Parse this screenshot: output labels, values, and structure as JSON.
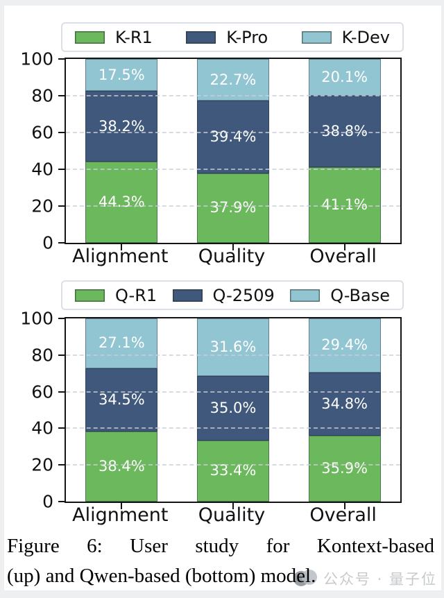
{
  "figure": {
    "caption": {
      "lines": [
        "Figure 6:  User study for Kontext-based",
        "(up) and Qwen-based (bottom) model."
      ],
      "full_text": "Figure 6: User study for Kontext-based (up) and Qwen-based (bottom) model."
    }
  },
  "watermark": {
    "text": "公众号 · 量子位",
    "logo": "qbitai-logo",
    "text_color": "#c7cacd"
  },
  "colors": {
    "series_green": "#6cb85c",
    "series_dark_blue": "#3f587b",
    "series_light_blue": "#92c5d2",
    "axis": "#141414",
    "grid": "#cbced4",
    "legend_border": "#dcdfe6"
  },
  "chart_data": [
    {
      "type": "bar",
      "stacked": true,
      "title": "",
      "xlabel": "",
      "ylabel": "",
      "categories": [
        "Alignment",
        "Quality",
        "Overall"
      ],
      "series": [
        {
          "name": "K-R1",
          "color": "#6cb85c",
          "values": [
            44.3,
            37.9,
            41.1
          ]
        },
        {
          "name": "K-Pro",
          "color": "#3f587b",
          "values": [
            38.2,
            39.4,
            38.8
          ]
        },
        {
          "name": "K-Dev",
          "color": "#92c5d2",
          "values": [
            17.5,
            22.7,
            20.1
          ]
        }
      ],
      "ylim": [
        0,
        100
      ],
      "yticks": [
        0,
        20,
        40,
        60,
        80,
        100
      ],
      "grid": "dashed-horizontal",
      "legend_position": "top",
      "value_labels": true,
      "value_suffix": "%"
    },
    {
      "type": "bar",
      "stacked": true,
      "title": "",
      "xlabel": "",
      "ylabel": "",
      "categories": [
        "Alignment",
        "Quality",
        "Overall"
      ],
      "series": [
        {
          "name": "Q-R1",
          "color": "#6cb85c",
          "values": [
            38.4,
            33.4,
            35.9
          ]
        },
        {
          "name": "Q-2509",
          "color": "#3f587b",
          "values": [
            34.5,
            35.0,
            34.8
          ]
        },
        {
          "name": "Q-Base",
          "color": "#92c5d2",
          "values": [
            27.1,
            31.6,
            29.4
          ]
        }
      ],
      "ylim": [
        0,
        100
      ],
      "yticks": [
        0,
        20,
        40,
        60,
        80,
        100
      ],
      "grid": "dashed-horizontal",
      "legend_position": "top",
      "value_labels": true,
      "value_suffix": "%"
    }
  ]
}
